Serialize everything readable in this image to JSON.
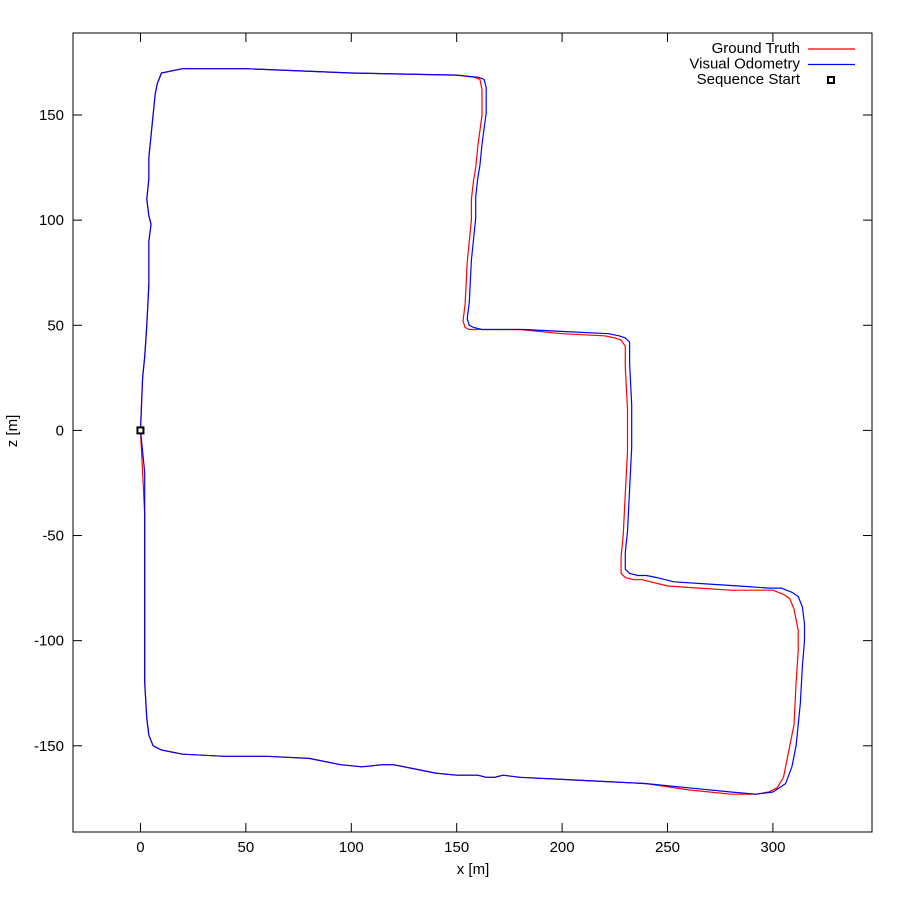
{
  "chart_data": {
    "type": "line",
    "title": "",
    "xlabel": "x [m]",
    "ylabel": "z [m]",
    "xlim": [
      -32,
      347
    ],
    "ylim": [
      -191,
      189
    ],
    "xticks": [
      0,
      50,
      100,
      150,
      200,
      250,
      300
    ],
    "yticks": [
      150,
      100,
      50,
      0,
      -50,
      -100,
      -150
    ],
    "xtick_labels": [
      "0",
      "50",
      "100",
      "150",
      "200",
      "250",
      "300"
    ],
    "ytick_labels": [
      "150",
      "100",
      "50",
      "0",
      "-50",
      "-100",
      "-150"
    ],
    "grid": false,
    "legend_position": "top-right",
    "series": [
      {
        "name": "Ground Truth",
        "color": "#ff0000",
        "x": [
          0,
          1,
          2,
          2,
          2,
          2,
          2,
          3,
          4,
          6,
          10,
          20,
          40,
          60,
          80,
          95,
          105,
          115,
          120,
          130,
          140,
          150,
          160,
          164,
          168,
          172,
          180,
          200,
          220,
          240,
          260,
          280,
          292,
          298,
          302,
          305,
          307,
          310,
          311,
          312,
          312,
          310,
          308,
          305,
          300,
          294,
          280,
          265,
          250,
          242,
          238,
          234,
          230,
          228,
          228,
          229,
          230,
          231,
          231,
          230,
          230,
          228,
          225,
          220,
          200,
          180,
          160,
          156,
          154,
          153,
          154,
          155,
          157,
          157,
          158,
          159,
          160,
          162,
          162,
          161,
          158,
          150,
          100,
          50,
          20,
          10,
          8,
          7,
          6,
          5,
          4,
          4,
          3,
          4,
          5,
          4,
          4,
          3,
          2,
          1,
          0
        ],
        "y": [
          0,
          -20,
          -40,
          -60,
          -80,
          -100,
          -120,
          -137,
          -145,
          -150,
          -152,
          -154,
          -155,
          -155,
          -156,
          -159,
          -160,
          -159,
          -159,
          -161,
          -163,
          -164,
          -164,
          -165,
          -165,
          -164,
          -165,
          -166,
          -167,
          -168,
          -171,
          -173,
          -173,
          -172,
          -170,
          -165,
          -155,
          -140,
          -120,
          -105,
          -95,
          -85,
          -80,
          -78,
          -76,
          -76,
          -76,
          -75,
          -74,
          -72,
          -71,
          -71,
          -70,
          -68,
          -60,
          -50,
          -30,
          -10,
          10,
          30,
          40,
          43,
          44,
          45,
          46,
          48,
          48,
          48,
          49,
          52,
          60,
          80,
          100,
          110,
          119,
          125,
          135,
          150,
          162,
          167,
          168,
          169,
          170,
          172,
          172,
          170,
          165,
          160,
          150,
          140,
          130,
          120,
          110,
          102,
          98,
          90,
          70,
          50,
          35,
          25,
          0
        ]
      },
      {
        "name": "Visual Odometry",
        "color": "#0000ff",
        "x": [
          0,
          2,
          2,
          2,
          2,
          2,
          2,
          3,
          4,
          6,
          10,
          20,
          40,
          60,
          80,
          95,
          105,
          115,
          120,
          130,
          140,
          150,
          160,
          164,
          168,
          172,
          180,
          200,
          220,
          240,
          260,
          280,
          292,
          300,
          306,
          309,
          311,
          313,
          314,
          315,
          315,
          314,
          312,
          309,
          304,
          298,
          284,
          268,
          253,
          245,
          240,
          236,
          232,
          230,
          230,
          231,
          232,
          233,
          233,
          232,
          232,
          230,
          227,
          222,
          202,
          182,
          162,
          158,
          156,
          155,
          156,
          157,
          159,
          159,
          160,
          161,
          162,
          164,
          164,
          163,
          160,
          150,
          100,
          50,
          20,
          10,
          8,
          7,
          6,
          5,
          4,
          4,
          3,
          4,
          5,
          4,
          4,
          3,
          2,
          1,
          0
        ],
        "y": [
          0,
          -20,
          -40,
          -60,
          -80,
          -100,
          -120,
          -137,
          -145,
          -150,
          -152,
          -154,
          -155,
          -155,
          -156,
          -159,
          -160,
          -159,
          -159,
          -161,
          -163,
          -164,
          -164,
          -165,
          -165,
          -164,
          -165,
          -166,
          -167,
          -168,
          -170,
          -172,
          -173,
          -172,
          -168,
          -160,
          -150,
          -130,
          -112,
          -100,
          -92,
          -84,
          -79,
          -77,
          -75,
          -75,
          -74,
          -73,
          -72,
          -70,
          -69,
          -69,
          -68,
          -66,
          -58,
          -48,
          -28,
          -8,
          12,
          32,
          42,
          44,
          45,
          46,
          47,
          48,
          48,
          49,
          50,
          53,
          61,
          81,
          101,
          111,
          120,
          126,
          136,
          151,
          163,
          167,
          168,
          169,
          170,
          172,
          172,
          170,
          165,
          160,
          150,
          140,
          130,
          120,
          110,
          102,
          98,
          90,
          70,
          50,
          35,
          25,
          0
        ]
      },
      {
        "name": "Sequence Start",
        "color": "#000000",
        "marker": "square",
        "x": [
          0
        ],
        "y": [
          0
        ]
      }
    ]
  }
}
